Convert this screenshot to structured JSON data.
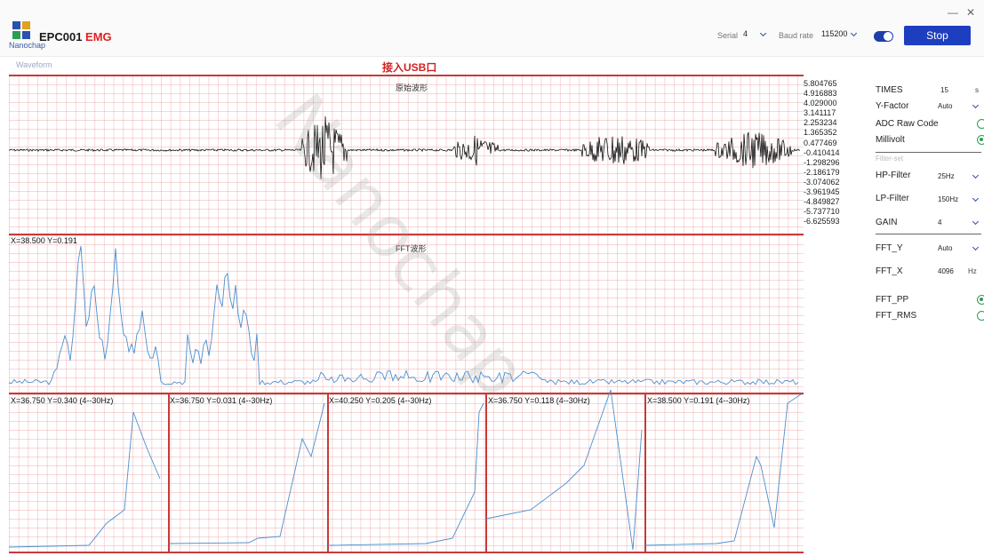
{
  "app": {
    "logo_text": "Nanochap",
    "title_main": "EPC001",
    "title_accent": "EMG"
  },
  "window": {
    "minimize": "—",
    "close": "✕"
  },
  "toolbar": {
    "serial_label": "Serial",
    "serial_value": "4",
    "baud_label": "Baud rate",
    "baud_value": "115200",
    "toggle_on": true,
    "stop_label": "Stop"
  },
  "section_label": "Waveform",
  "usb_banner": "接入USB口",
  "raw_chart": {
    "title": "原始波形",
    "y_ticks": [
      "5.804765",
      "4.916883",
      "4.029000",
      "3.141117",
      "2.253234",
      "1.365352",
      "0.477469",
      "-0.410414",
      "-1.298296",
      "-2.186179",
      "-3.074062",
      "-3.961945",
      "-4.849827",
      "-5.737710",
      "-6.625593"
    ]
  },
  "fft_chart": {
    "title": "FFT波形",
    "readout": "X=38.500 Y=0.191"
  },
  "sub_charts": [
    {
      "readout": "X=36.750 Y=0.340 (4--30Hz)"
    },
    {
      "readout": "X=36.750 Y=0.031 (4--30Hz)"
    },
    {
      "readout": "X=40.250 Y=0.205 (4--30Hz)"
    },
    {
      "readout": "X=36.750 Y=0.118 (4--30Hz)"
    },
    {
      "readout": "X=38.500 Y=0.191 (4--30Hz)"
    }
  ],
  "settings": {
    "times_label": "TIMES",
    "times_value": "15",
    "times_unit": "s",
    "yfactor_label": "Y-Factor",
    "yfactor_value": "Auto",
    "adc_label": "ADC Raw Code",
    "millivolt_label": "Millivolt",
    "filter_set_label": "Filter-set",
    "hp_label": "HP-Filter",
    "hp_value": "25Hz",
    "lp_label": "LP-Filter",
    "lp_value": "150Hz",
    "gain_label": "GAIN",
    "gain_value": "4",
    "ffty_label": "FFT_Y",
    "ffty_value": "Auto",
    "fftx_label": "FFT_X",
    "fftx_value": "4096",
    "fftx_unit": "Hz",
    "fftpp_label": "FFT_PP",
    "fftrms_label": "FFT_RMS"
  },
  "colors": {
    "accent": "#1e3ec0",
    "red": "#c63a3a",
    "trace": "#4a90d0",
    "radio": "#2aa050"
  },
  "watermark": "Nanochap"
}
